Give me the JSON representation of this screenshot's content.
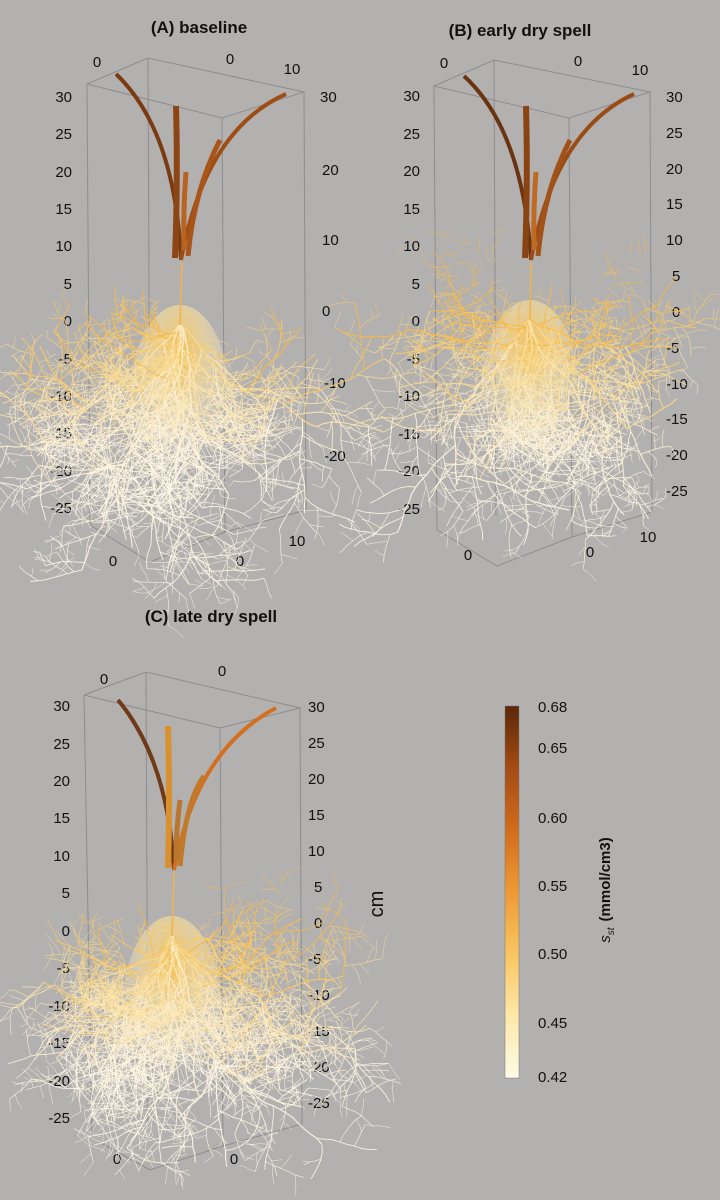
{
  "panels": [
    {
      "title": "(A) baseline",
      "left_ticks": [
        "30",
        "25",
        "20",
        "15",
        "10",
        "5",
        "0",
        "-5",
        "-10",
        "-15",
        "-20",
        "-25"
      ],
      "right_ticks": [
        "30",
        "20",
        "10",
        "0",
        "-10",
        "-20"
      ],
      "top_ticks": [
        "0",
        "0",
        "10"
      ],
      "bottom_ticks": [
        "0",
        "0",
        "10"
      ],
      "stems": [
        "#7a3b12",
        "#9e4e15",
        "#8d4514",
        "#a9551a",
        "#b8631f"
      ]
    },
    {
      "title": "(B) early dry spell",
      "left_ticks": [
        "30",
        "25",
        "20",
        "15",
        "10",
        "5",
        "0",
        "-5",
        "-10",
        "-15",
        "-20",
        "-25"
      ],
      "right_ticks": [
        "30",
        "25",
        "20",
        "15",
        "10",
        "5",
        "0",
        "-5",
        "-10",
        "-15",
        "-20",
        "-25"
      ],
      "top_ticks": [
        "0",
        "0",
        "10"
      ],
      "bottom_ticks": [
        "0",
        "0",
        "10"
      ],
      "stems": [
        "#6b3410",
        "#9a4c16",
        "#8a4413",
        "#a25118",
        "#bf6a22"
      ]
    },
    {
      "title": "(C) late dry spell",
      "left_ticks": [
        "30",
        "25",
        "20",
        "15",
        "10",
        "5",
        "0",
        "-5",
        "-10",
        "-15",
        "-20",
        "-25"
      ],
      "right_ticks": [
        "30",
        "25",
        "20",
        "15",
        "10",
        "5",
        "0",
        "-5",
        "-10",
        "-15",
        "-20",
        "-25"
      ],
      "top_ticks": [
        "0",
        "0"
      ],
      "bottom_ticks": [
        "0",
        "0"
      ],
      "stems": [
        "#6e3a17",
        "#d9902f",
        "#c07a2a",
        "#b8772e",
        "#d37020"
      ]
    }
  ],
  "axis_unit": "cm",
  "colorbar": {
    "label_symbol": "s",
    "label_sub": "st",
    "label_units": "(mmol/cm3)",
    "ticks": [
      "0.68",
      "0.65",
      "0.60",
      "0.55",
      "0.50",
      "0.45",
      "0.42"
    ],
    "colors": [
      "#fffbe6",
      "#fde8a8",
      "#f9c55f",
      "#ee9a35",
      "#d26c1c",
      "#a34c14",
      "#5c2608"
    ]
  }
}
